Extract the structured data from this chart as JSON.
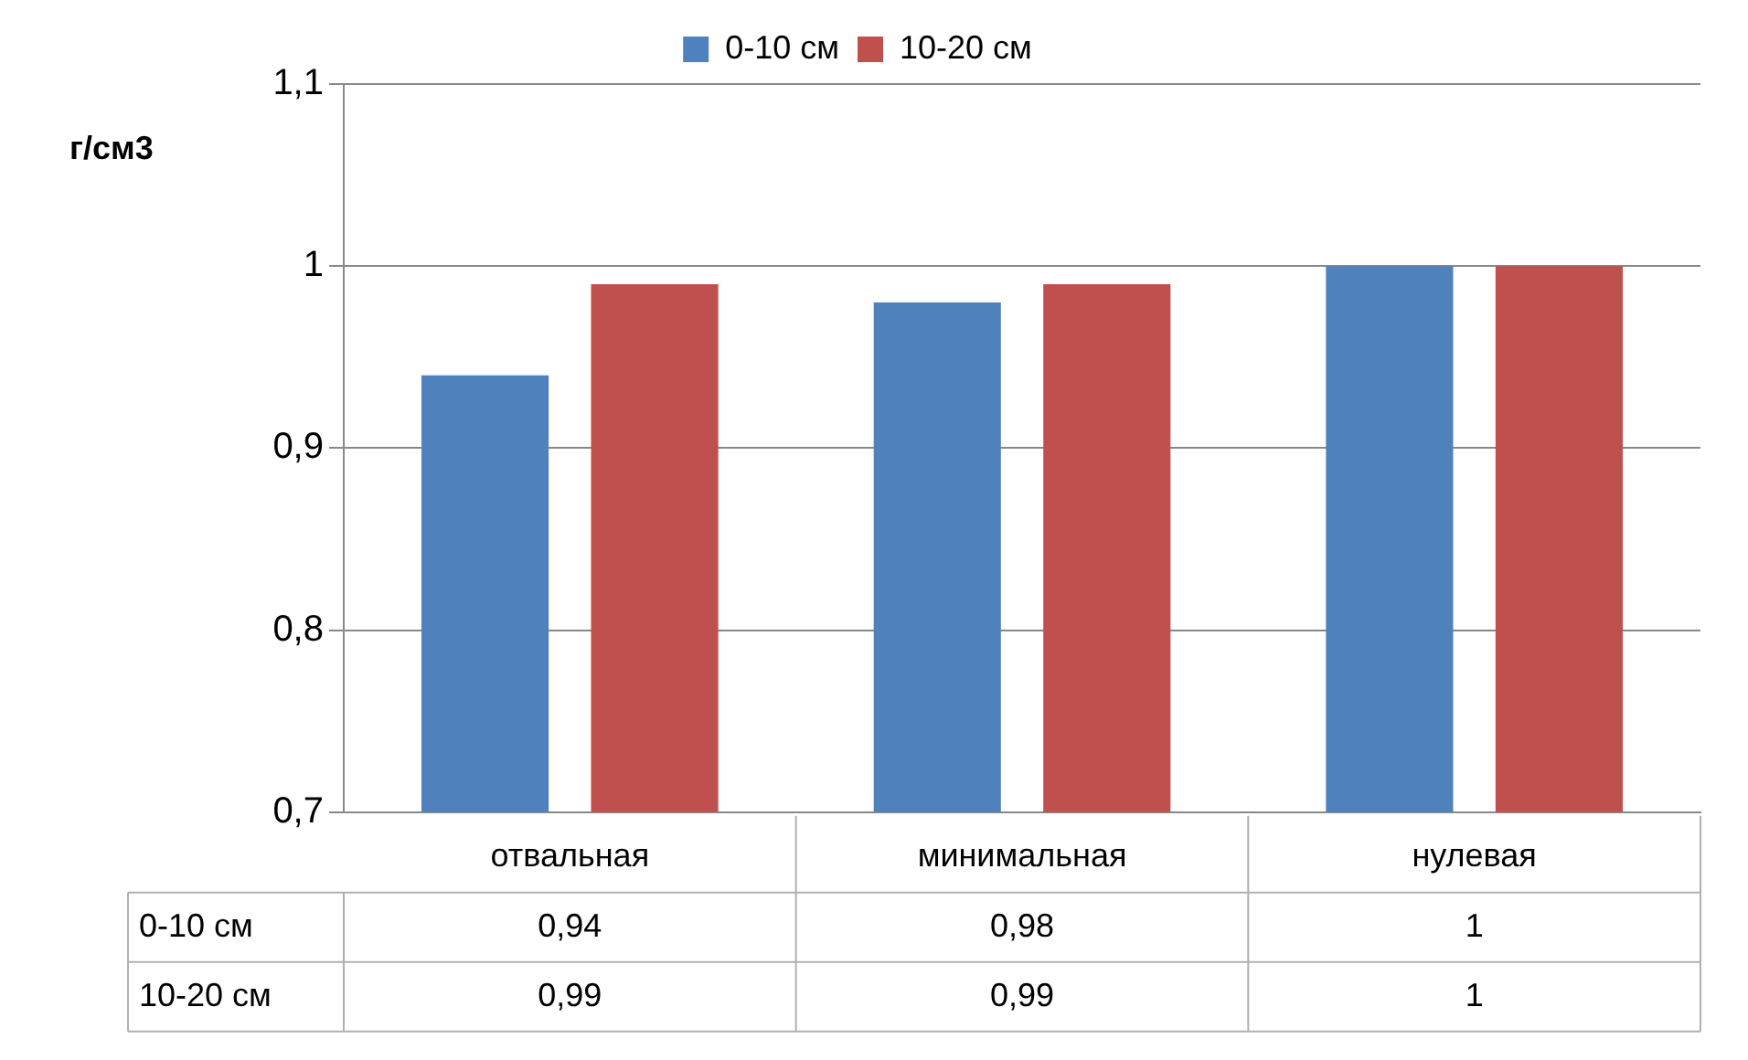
{
  "chart_data": {
    "type": "bar",
    "ylabel": "г/см3",
    "categories": [
      "отвальная",
      "минимальная",
      "нулевая"
    ],
    "series": [
      {
        "name": "0-10 см",
        "color": "#4f81bd",
        "values": [
          0.94,
          0.98,
          1
        ],
        "value_labels": [
          "0,94",
          "0,98",
          "1"
        ]
      },
      {
        "name": "10-20 см",
        "color": "#c0504d",
        "values": [
          0.99,
          0.99,
          1
        ],
        "value_labels": [
          "0,99",
          "0,99",
          "1"
        ]
      }
    ],
    "ylim": [
      0.7,
      1.1
    ],
    "yticks": [
      {
        "value": 0.7,
        "label": "0,7"
      },
      {
        "value": 0.8,
        "label": "0,8"
      },
      {
        "value": 0.9,
        "label": "0,9"
      },
      {
        "value": 1,
        "label": "1"
      },
      {
        "value": 1.1,
        "label": "1,1"
      }
    ],
    "grid": "y",
    "legend": "top"
  }
}
